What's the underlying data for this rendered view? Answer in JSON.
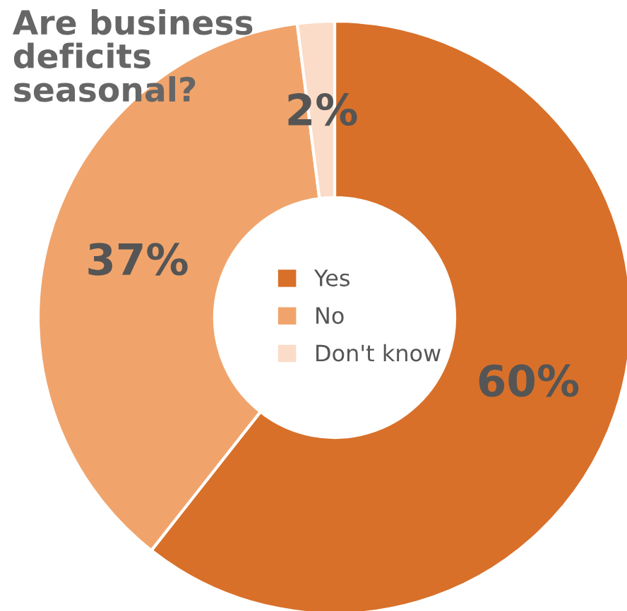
{
  "chart_data": {
    "type": "donut",
    "title": "Are business\ndeficits\nseasonal?",
    "categories": [
      "Yes",
      "No",
      "Don't know"
    ],
    "values": [
      60,
      37,
      2
    ],
    "colors": [
      "#d8702a",
      "#f0a46c",
      "#fbdcc8"
    ],
    "value_labels": [
      "60%",
      "37%",
      "2%"
    ],
    "legend": "center"
  }
}
